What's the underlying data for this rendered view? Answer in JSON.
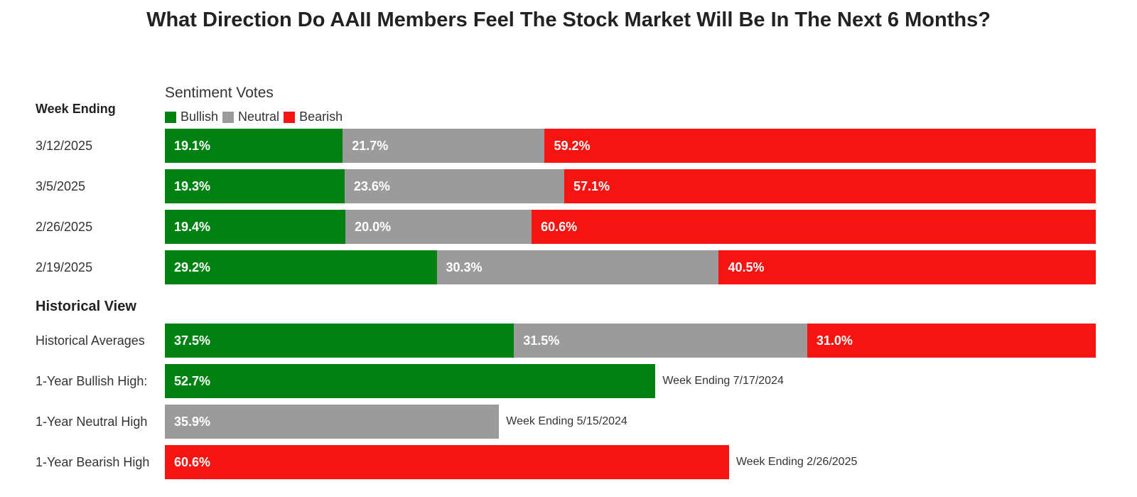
{
  "title": "What Direction Do AAII Members Feel The Stock Market Will Be In The Next 6 Months?",
  "legend_title": "Sentiment Votes",
  "week_ending_header": "Week Ending",
  "historical_header": "Historical View",
  "colors": {
    "Bullish": "#008213",
    "Neutral": "#9b9b9b",
    "Bearish": "#f5140f"
  },
  "legend": [
    "Bullish",
    "Neutral",
    "Bearish"
  ],
  "chart_data": {
    "type": "bar",
    "orientation": "horizontal",
    "stacked": true,
    "weekly": [
      {
        "label": "3/12/2025",
        "values": {
          "Bullish": 19.1,
          "Neutral": 21.7,
          "Bearish": 59.2
        },
        "labels": {
          "Bullish": "19.1%",
          "Neutral": "21.7%",
          "Bearish": "59.2%"
        }
      },
      {
        "label": "3/5/2025",
        "values": {
          "Bullish": 19.3,
          "Neutral": 23.6,
          "Bearish": 57.1
        },
        "labels": {
          "Bullish": "19.3%",
          "Neutral": "23.6%",
          "Bearish": "57.1%"
        }
      },
      {
        "label": "2/26/2025",
        "values": {
          "Bullish": 19.4,
          "Neutral": 20.0,
          "Bearish": 60.6
        },
        "labels": {
          "Bullish": "19.4%",
          "Neutral": "20.0%",
          "Bearish": "60.6%"
        }
      },
      {
        "label": "2/19/2025",
        "values": {
          "Bullish": 29.2,
          "Neutral": 30.3,
          "Bearish": 40.5
        },
        "labels": {
          "Bullish": "29.2%",
          "Neutral": "30.3%",
          "Bearish": "40.5%"
        }
      }
    ],
    "historical_averages": {
      "label": "Historical Averages",
      "values": {
        "Bullish": 37.5,
        "Neutral": 31.5,
        "Bearish": 31.0
      },
      "labels": {
        "Bullish": "37.5%",
        "Neutral": "31.5%",
        "Bearish": "31.0%"
      }
    },
    "highs": [
      {
        "label": "1-Year Bullish High:",
        "series": "Bullish",
        "value": 52.7,
        "value_label": "52.7%",
        "note": "Week Ending 7/17/2024"
      },
      {
        "label": "1-Year Neutral High",
        "series": "Neutral",
        "value": 35.9,
        "value_label": "35.9%",
        "note": "Week Ending 5/15/2024"
      },
      {
        "label": "1-Year Bearish High",
        "series": "Bearish",
        "value": 60.6,
        "value_label": "60.6%",
        "note": "Week Ending 2/26/2025"
      }
    ],
    "xlim": [
      0,
      100
    ]
  }
}
